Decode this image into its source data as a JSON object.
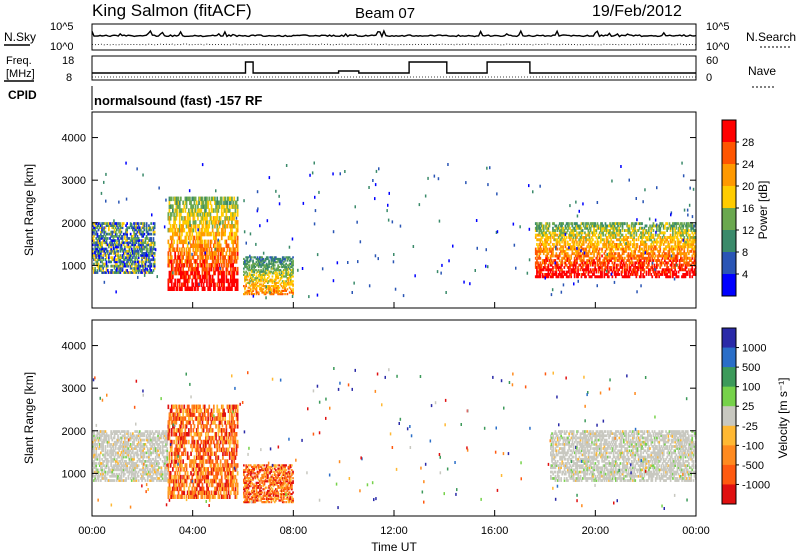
{
  "header": {
    "station": "King Salmon (fitACF)",
    "beam": "Beam 07",
    "date": "19/Feb/2012"
  },
  "panels": {
    "nsky_label": "N.Sky",
    "nsearch_label": "N.Search",
    "noise_tick_high": "10^5",
    "noise_tick_low": "10^0",
    "freq_label_line1": "Freq.",
    "freq_label_line2": "[MHz]",
    "freq_ticks": [
      "18",
      "8"
    ],
    "nave_label": "Nave",
    "nave_ticks": [
      "60",
      "0"
    ],
    "cpid_label": "CPID",
    "cpid_text": "normalsound (fast) -157 RF"
  },
  "colors": {
    "power_scale": [
      "#0000ff",
      "#2a55b5",
      "#3a8a6a",
      "#6aa84f",
      "#ffcc00",
      "#ff9900",
      "#ff5500",
      "#ff0000"
    ],
    "velocity_scale": [
      "#2a2aa8",
      "#2a6ec8",
      "#3c9a5a",
      "#76d24a",
      "#c8c8c0",
      "#ffb833",
      "#ff8a1f",
      "#ff5a10",
      "#e01010"
    ]
  },
  "chart_data": [
    {
      "type": "heatmap",
      "title": "",
      "xlabel": "",
      "ylabel": "Slant Range [km]",
      "x_ticks": [
        "00:00",
        "04:00",
        "08:00",
        "12:00",
        "16:00",
        "20:00",
        "00:00"
      ],
      "y_ticks": [
        1000,
        2000,
        3000,
        4000
      ],
      "ylim": [
        0,
        4600
      ],
      "colorbar_label": "Power [dB]",
      "colorbar_ticks": [
        4,
        8,
        12,
        16,
        20,
        24,
        28
      ],
      "regions": [
        {
          "t_start": 0.0,
          "t_end": 2.5,
          "range_min": 800,
          "range_max": 2000,
          "level": "mixed"
        },
        {
          "t_start": 3.0,
          "t_end": 5.8,
          "range_min": 400,
          "range_max": 2600,
          "level": "high"
        },
        {
          "t_start": 6.0,
          "t_end": 8.0,
          "range_min": 300,
          "range_max": 1200,
          "level": "medium"
        },
        {
          "t_start": 17.6,
          "t_end": 24.0,
          "range_min": 700,
          "range_max": 2000,
          "level": "high"
        }
      ]
    },
    {
      "type": "heatmap",
      "title": "",
      "xlabel": "Time UT",
      "ylabel": "Slant Range [km]",
      "x_ticks": [
        "00:00",
        "04:00",
        "08:00",
        "12:00",
        "16:00",
        "20:00",
        "00:00"
      ],
      "y_ticks": [
        1000,
        2000,
        3000,
        4000
      ],
      "ylim": [
        0,
        4600
      ],
      "colorbar_label": "Velocity [m s⁻¹]",
      "colorbar_ticks": [
        "1000",
        "500",
        "100",
        "25",
        "-25",
        "-100",
        "-500",
        "-1000"
      ],
      "regions": [
        {
          "t_start": 0.0,
          "t_end": 3.0,
          "range_min": 800,
          "range_max": 2000,
          "level": "near-zero"
        },
        {
          "t_start": 3.0,
          "t_end": 5.8,
          "range_min": 400,
          "range_max": 2600,
          "level": "negative"
        },
        {
          "t_start": 6.0,
          "t_end": 8.0,
          "range_min": 300,
          "range_max": 1200,
          "level": "negative"
        },
        {
          "t_start": 18.2,
          "t_end": 24.0,
          "range_min": 800,
          "range_max": 2000,
          "level": "near-zero"
        }
      ]
    }
  ]
}
